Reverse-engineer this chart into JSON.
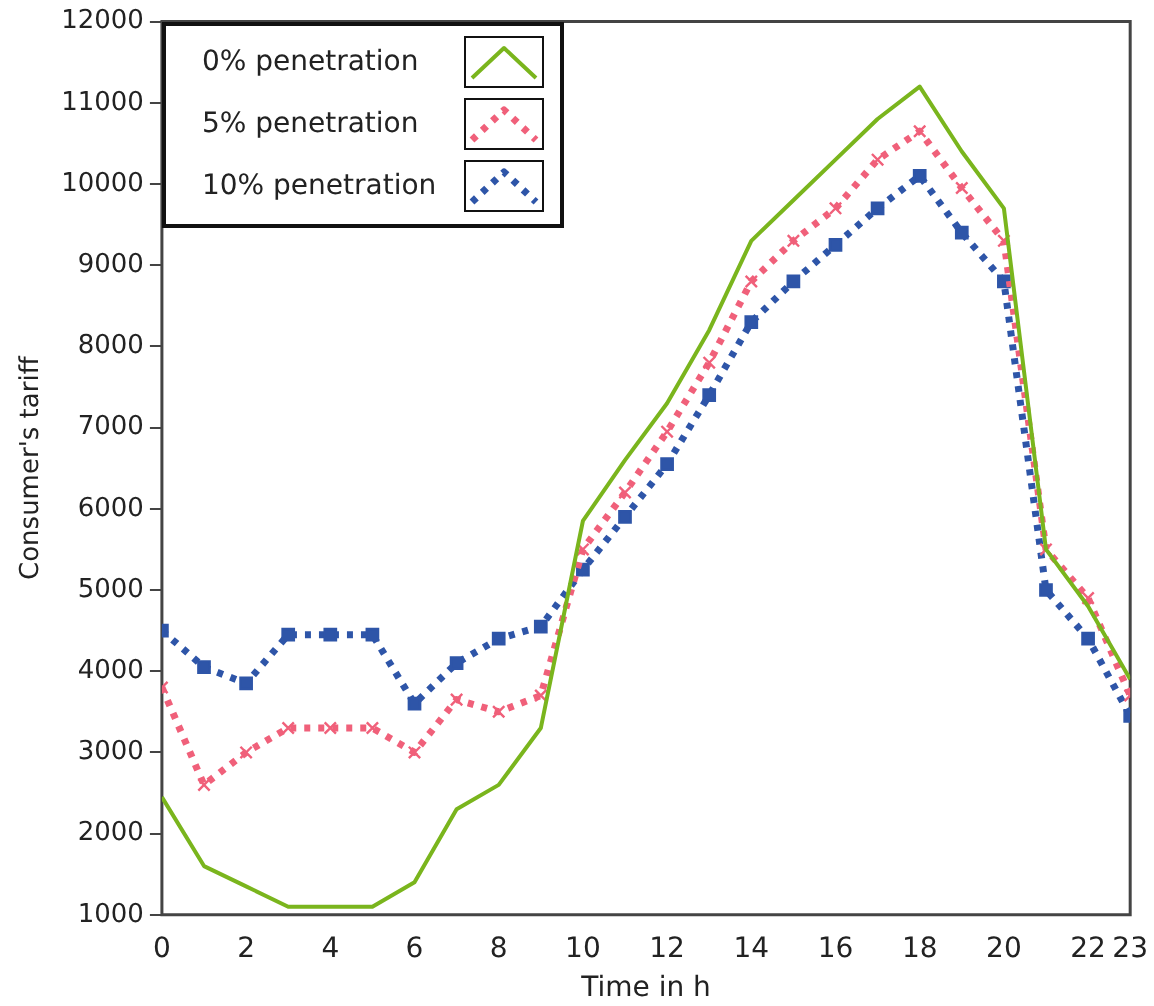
{
  "chart_data": {
    "type": "line",
    "xlabel": "Time in h",
    "ylabel": "Consumer's tariff",
    "x": [
      0,
      1,
      2,
      3,
      4,
      5,
      6,
      7,
      8,
      9,
      10,
      11,
      12,
      13,
      14,
      15,
      16,
      17,
      18,
      19,
      20,
      21,
      22,
      23
    ],
    "series": [
      {
        "name": "0%  penetration",
        "color": "#7ab51d",
        "marker": "none",
        "line_style": "solid",
        "values": [
          2450,
          1600,
          1350,
          1100,
          1100,
          1100,
          1400,
          2300,
          2600,
          3300,
          5850,
          6600,
          7300,
          8200,
          9300,
          9800,
          10300,
          10800,
          11200,
          10400,
          9700,
          5500,
          4800,
          3900
        ]
      },
      {
        "name": "5% penetration",
        "color": "#f0607a",
        "marker": "cross",
        "line_style": "dotted",
        "values": [
          3800,
          2600,
          3000,
          3300,
          3300,
          3300,
          3000,
          3650,
          3500,
          3700,
          5500,
          6200,
          6950,
          7800,
          8800,
          9300,
          9700,
          10300,
          10650,
          9950,
          9300,
          5500,
          4900,
          3700
        ]
      },
      {
        "name": "10% penetration",
        "color": "#2e55a8",
        "marker": "square",
        "line_style": "dotted",
        "values": [
          4500,
          4050,
          3850,
          4450,
          4450,
          4450,
          3600,
          4100,
          4400,
          4550,
          5250,
          5900,
          6550,
          7400,
          8300,
          8800,
          9250,
          9700,
          10100,
          9400,
          8800,
          5000,
          4400,
          3450
        ]
      }
    ],
    "xlim": [
      0,
      23
    ],
    "xticks": [
      0,
      2,
      4,
      6,
      8,
      10,
      12,
      14,
      16,
      18,
      20,
      22,
      23
    ],
    "ylim": [
      1000,
      12000
    ],
    "yticks": [
      1000,
      2000,
      3000,
      4000,
      5000,
      6000,
      7000,
      8000,
      9000,
      10000,
      11000,
      12000
    ],
    "grid": false,
    "legend": "top left"
  }
}
